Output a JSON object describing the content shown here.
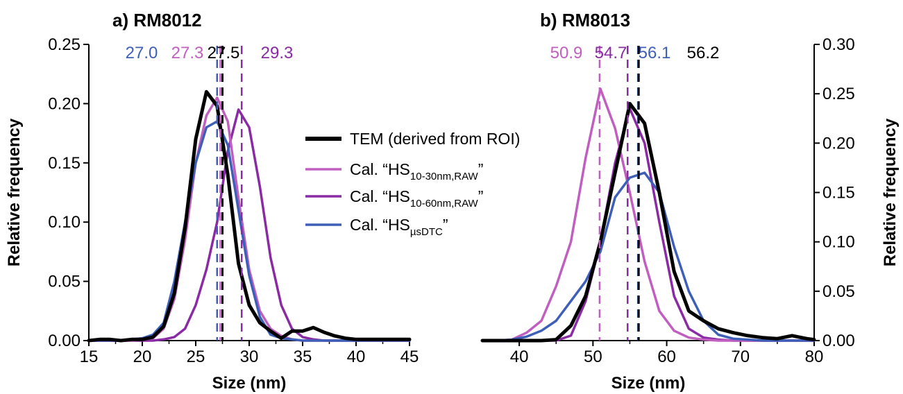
{
  "legend": {
    "entries": [
      {
        "key": "tem",
        "pre": "TEM (derived from ROI)",
        "sub": "",
        "post": "",
        "color": "#000000"
      },
      {
        "key": "hs30",
        "pre": "Cal. “HS",
        "sub": "10-30nm,RAW",
        "post": "”",
        "color": "#c05fbf"
      },
      {
        "key": "hs60",
        "pre": "Cal. “HS",
        "sub": "10-60nm,RAW",
        "post": "”",
        "color": "#8a2aa4"
      },
      {
        "key": "dtc",
        "pre": "Cal. “HS",
        "sub": "µsDTC",
        "post": "”",
        "color": "#3d5fb8"
      }
    ]
  },
  "chart_data": [
    {
      "type": "line",
      "title": "a) RM8012",
      "xlabel": "Size (nm)",
      "ylabel": "Relative frequency",
      "xlim": [
        15,
        45
      ],
      "ylim": [
        0,
        0.25
      ],
      "xticks": [
        "15",
        "20",
        "25",
        "30",
        "35",
        "40",
        "45"
      ],
      "yticks": [
        "0.00",
        "0.05",
        "0.10",
        "0.15",
        "0.20",
        "0.25"
      ],
      "y_axis_side": "left",
      "means": [
        {
          "series": "dtc",
          "label": "27.0",
          "x": 27.0
        },
        {
          "series": "hs30",
          "label": "27.3",
          "x": 27.3
        },
        {
          "series": "tem",
          "label": "27.5",
          "x": 27.5
        },
        {
          "series": "hs60",
          "label": "29.3",
          "x": 29.3
        }
      ],
      "series": [
        {
          "key": "tem",
          "x": [
            15,
            16,
            17,
            18,
            19,
            20,
            21,
            22,
            23,
            24,
            25,
            26,
            27,
            28,
            29,
            30,
            31,
            32,
            33,
            34,
            35,
            36,
            37,
            38,
            39,
            40,
            41,
            42,
            43,
            44,
            45
          ],
          "y": [
            0.0,
            0.001,
            0.001,
            0.0,
            0.001,
            0.001,
            0.003,
            0.012,
            0.04,
            0.095,
            0.17,
            0.21,
            0.198,
            0.14,
            0.065,
            0.03,
            0.015,
            0.008,
            0.002,
            0.008,
            0.008,
            0.011,
            0.007,
            0.004,
            0.002,
            0.001,
            0.001,
            0.001,
            0.001,
            0.001,
            0.001
          ]
        },
        {
          "key": "hs30",
          "x": [
            15,
            16,
            17,
            18,
            19,
            20,
            21,
            22,
            23,
            24,
            25,
            26,
            27,
            28,
            29,
            30,
            31,
            32,
            33,
            34,
            35,
            36,
            37,
            38,
            39,
            40,
            41,
            42,
            43,
            44,
            45
          ],
          "y": [
            0.0,
            0.0,
            0.0,
            0.0,
            0.0,
            0.001,
            0.002,
            0.01,
            0.035,
            0.085,
            0.15,
            0.19,
            0.205,
            0.185,
            0.12,
            0.06,
            0.025,
            0.01,
            0.004,
            0.001,
            0.0,
            0.0,
            0.0,
            0.0,
            0.0,
            0.0,
            0.0,
            0.0,
            0.0,
            0.0,
            0.0
          ]
        },
        {
          "key": "hs60",
          "x": [
            15,
            16,
            17,
            18,
            19,
            20,
            21,
            22,
            23,
            24,
            25,
            26,
            27,
            28,
            29,
            30,
            31,
            32,
            33,
            34,
            35,
            36,
            37,
            38,
            39,
            40,
            41,
            42,
            43,
            44,
            45
          ],
          "y": [
            0.0,
            0.0,
            0.0,
            0.0,
            0.0,
            0.0,
            0.0,
            0.001,
            0.003,
            0.01,
            0.03,
            0.06,
            0.1,
            0.16,
            0.195,
            0.18,
            0.13,
            0.07,
            0.03,
            0.01,
            0.003,
            0.001,
            0.0,
            0.0,
            0.0,
            0.0,
            0.0,
            0.0,
            0.0,
            0.0,
            0.0
          ]
        },
        {
          "key": "dtc",
          "x": [
            15,
            16,
            17,
            18,
            19,
            20,
            21,
            22,
            23,
            24,
            25,
            26,
            27,
            28,
            29,
            30,
            31,
            32,
            33,
            34,
            35,
            36,
            37,
            38,
            39,
            40,
            41,
            42,
            43,
            44,
            45
          ],
          "y": [
            0.0,
            0.0,
            0.0,
            0.0,
            0.001,
            0.002,
            0.005,
            0.015,
            0.05,
            0.1,
            0.15,
            0.18,
            0.185,
            0.165,
            0.11,
            0.055,
            0.02,
            0.005,
            0.002,
            0.001,
            0.0,
            0.0,
            0.0,
            0.0,
            0.0,
            0.0,
            0.0,
            0.0,
            0.0,
            0.0,
            0.0
          ]
        }
      ]
    },
    {
      "type": "line",
      "title": "b) RM8013",
      "xlabel": "Size (nm)",
      "ylabel": "Relative frequency",
      "xlim": [
        35,
        80
      ],
      "ylim": [
        0,
        0.3
      ],
      "xticks": [
        "40",
        "50",
        "60",
        "70",
        "80"
      ],
      "xtick_values": [
        40,
        50,
        60,
        70,
        80
      ],
      "yticks": [
        "0.00",
        "0.05",
        "0.10",
        "0.15",
        "0.20",
        "0.25",
        "0.30"
      ],
      "y_axis_side": "right",
      "means": [
        {
          "series": "hs30",
          "label": "50.9",
          "x": 50.9
        },
        {
          "series": "hs60",
          "label": "54.7",
          "x": 54.7
        },
        {
          "series": "dtc",
          "label": "56.1",
          "x": 56.1
        },
        {
          "series": "tem",
          "label": "56.2",
          "x": 56.2
        }
      ],
      "series": [
        {
          "key": "tem",
          "x": [
            35,
            37,
            39,
            41,
            43,
            45,
            47,
            49,
            51,
            53,
            55,
            57,
            59,
            61,
            63,
            65,
            67,
            69,
            71,
            73,
            75,
            77,
            79,
            80
          ],
          "y": [
            0.0,
            0.0,
            0.0,
            0.0,
            0.0,
            0.001,
            0.015,
            0.045,
            0.1,
            0.17,
            0.24,
            0.22,
            0.15,
            0.07,
            0.03,
            0.02,
            0.012,
            0.008,
            0.005,
            0.003,
            0.002,
            0.005,
            0.002,
            0.001
          ]
        },
        {
          "key": "hs30",
          "x": [
            35,
            37,
            39,
            41,
            43,
            45,
            47,
            49,
            51,
            53,
            55,
            57,
            59,
            61,
            63,
            65,
            67,
            69,
            71,
            73,
            75,
            77,
            79,
            80
          ],
          "y": [
            0.0,
            0.0,
            0.001,
            0.008,
            0.02,
            0.055,
            0.1,
            0.185,
            0.255,
            0.215,
            0.15,
            0.08,
            0.03,
            0.01,
            0.003,
            0.001,
            0.0,
            0.0,
            0.0,
            0.0,
            0.0,
            0.0,
            0.0,
            0.0
          ]
        },
        {
          "key": "hs60",
          "x": [
            35,
            37,
            39,
            41,
            43,
            45,
            47,
            49,
            51,
            53,
            55,
            57,
            59,
            61,
            63,
            65,
            67,
            69,
            71,
            73,
            75,
            77,
            79,
            80
          ],
          "y": [
            0.0,
            0.0,
            0.0,
            0.0,
            0.0,
            0.0,
            0.005,
            0.04,
            0.1,
            0.18,
            0.235,
            0.2,
            0.12,
            0.045,
            0.012,
            0.003,
            0.001,
            0.0,
            0.0,
            0.0,
            0.0,
            0.0,
            0.0,
            0.0
          ]
        },
        {
          "key": "dtc",
          "x": [
            35,
            37,
            39,
            41,
            43,
            45,
            47,
            49,
            51,
            53,
            55,
            57,
            59,
            61,
            63,
            65,
            67,
            69,
            71,
            73,
            75,
            77,
            79,
            80
          ],
          "y": [
            0.0,
            0.0,
            0.001,
            0.004,
            0.01,
            0.02,
            0.04,
            0.06,
            0.09,
            0.145,
            0.165,
            0.17,
            0.15,
            0.095,
            0.05,
            0.02,
            0.006,
            0.002,
            0.001,
            0.0,
            0.0,
            0.0,
            0.0,
            0.0
          ]
        }
      ]
    }
  ]
}
